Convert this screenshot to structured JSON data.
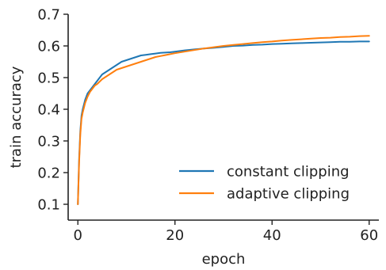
{
  "chart_data": {
    "type": "line",
    "title": "",
    "xlabel": "epoch",
    "ylabel": "train accuracy",
    "xlim": [
      -2,
      62
    ],
    "ylim": [
      0.05,
      0.7
    ],
    "xticks": [
      0,
      20,
      40,
      60
    ],
    "xtick_labels": [
      "0",
      "20",
      "40",
      "60"
    ],
    "yticks": [
      0.1,
      0.2,
      0.3,
      0.4,
      0.5,
      0.6,
      0.7
    ],
    "ytick_labels": [
      "0.1",
      "0.2",
      "0.3",
      "0.4",
      "0.5",
      "0.6",
      "0.7"
    ],
    "grid": false,
    "legend_position": "lower-right",
    "series": [
      {
        "name": "constant clipping",
        "color": "#1f77b4",
        "x": [
          0,
          0.25,
          0.5,
          0.75,
          1,
          1.5,
          2,
          2.5,
          3,
          3.5,
          4,
          5,
          6,
          7,
          8,
          9,
          10,
          11,
          12,
          13,
          14,
          15,
          16,
          17,
          18,
          19,
          20,
          22,
          24,
          26,
          28,
          30,
          32,
          34,
          36,
          38,
          40,
          42,
          44,
          46,
          48,
          50,
          52,
          54,
          56,
          58,
          60
        ],
        "y": [
          0.1,
          0.24,
          0.33,
          0.38,
          0.4,
          0.43,
          0.45,
          0.46,
          0.47,
          0.48,
          0.49,
          0.51,
          0.52,
          0.53,
          0.54,
          0.55,
          0.555,
          0.56,
          0.565,
          0.57,
          0.572,
          0.574,
          0.576,
          0.578,
          0.579,
          0.58,
          0.582,
          0.586,
          0.589,
          0.592,
          0.594,
          0.597,
          0.6,
          0.601,
          0.603,
          0.604,
          0.606,
          0.607,
          0.608,
          0.609,
          0.61,
          0.611,
          0.612,
          0.613,
          0.613,
          0.614,
          0.614
        ]
      },
      {
        "name": "adaptive clipping",
        "color": "#ff7f0e",
        "x": [
          0,
          0.25,
          0.5,
          0.75,
          1,
          1.5,
          2,
          2.5,
          3,
          3.5,
          4,
          5,
          6,
          7,
          8,
          9,
          10,
          11,
          12,
          13,
          14,
          15,
          16,
          17,
          18,
          19,
          20,
          22,
          24,
          26,
          28,
          30,
          32,
          34,
          36,
          38,
          40,
          42,
          44,
          46,
          48,
          50,
          52,
          54,
          56,
          58,
          60
        ],
        "y": [
          0.1,
          0.23,
          0.32,
          0.37,
          0.39,
          0.42,
          0.44,
          0.455,
          0.465,
          0.475,
          0.48,
          0.495,
          0.505,
          0.515,
          0.525,
          0.53,
          0.535,
          0.54,
          0.545,
          0.55,
          0.555,
          0.56,
          0.565,
          0.568,
          0.571,
          0.574,
          0.577,
          0.582,
          0.587,
          0.592,
          0.596,
          0.6,
          0.603,
          0.606,
          0.609,
          0.612,
          0.614,
          0.617,
          0.619,
          0.621,
          0.623,
          0.625,
          0.626,
          0.628,
          0.629,
          0.631,
          0.632
        ]
      }
    ]
  }
}
